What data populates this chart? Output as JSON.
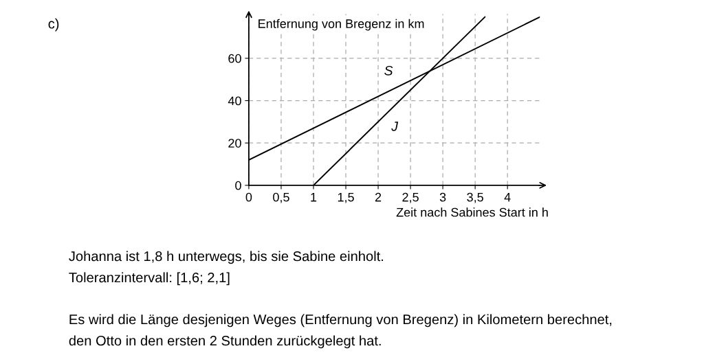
{
  "chart_data": {
    "type": "line",
    "ylabel": "Entfernung von Bregenz in km",
    "xlabel": "Zeit nach Sabines Start in h",
    "series": [
      {
        "name": "S",
        "color": "#000000",
        "x": [
          0,
          4.5
        ],
        "values": [
          12,
          79.5
        ]
      },
      {
        "name": "J",
        "color": "#000000",
        "x": [
          1,
          3.65
        ],
        "values": [
          0,
          79.5
        ]
      }
    ],
    "xlim": [
      0,
      4.5
    ],
    "ylim": [
      0,
      81
    ],
    "xticks": [
      0,
      {
        "value": 0.5,
        "label": "0,5"
      },
      1,
      {
        "value": 1.5,
        "label": "1,5"
      },
      2,
      {
        "value": 2.5,
        "label": "2,5"
      },
      3,
      {
        "value": 3.5,
        "label": "3,5"
      },
      4
    ],
    "yticks": [
      0,
      20,
      40,
      60
    ],
    "grid": true,
    "legend": false,
    "marker": "none",
    "line_style": "solid",
    "annotations": [
      "c)",
      "Johanna ist 1,8 h unterwegs, bis sie Sabine einholt.",
      "Toleranzintervall: [1,6; 2,1]",
      "Es wird die Länge desjenigen Weges (Entfernung von Bregenz) in Kilometern berechnet,",
      "den Otto in den ersten 2 Stunden zurückgelegt hat."
    ]
  }
}
